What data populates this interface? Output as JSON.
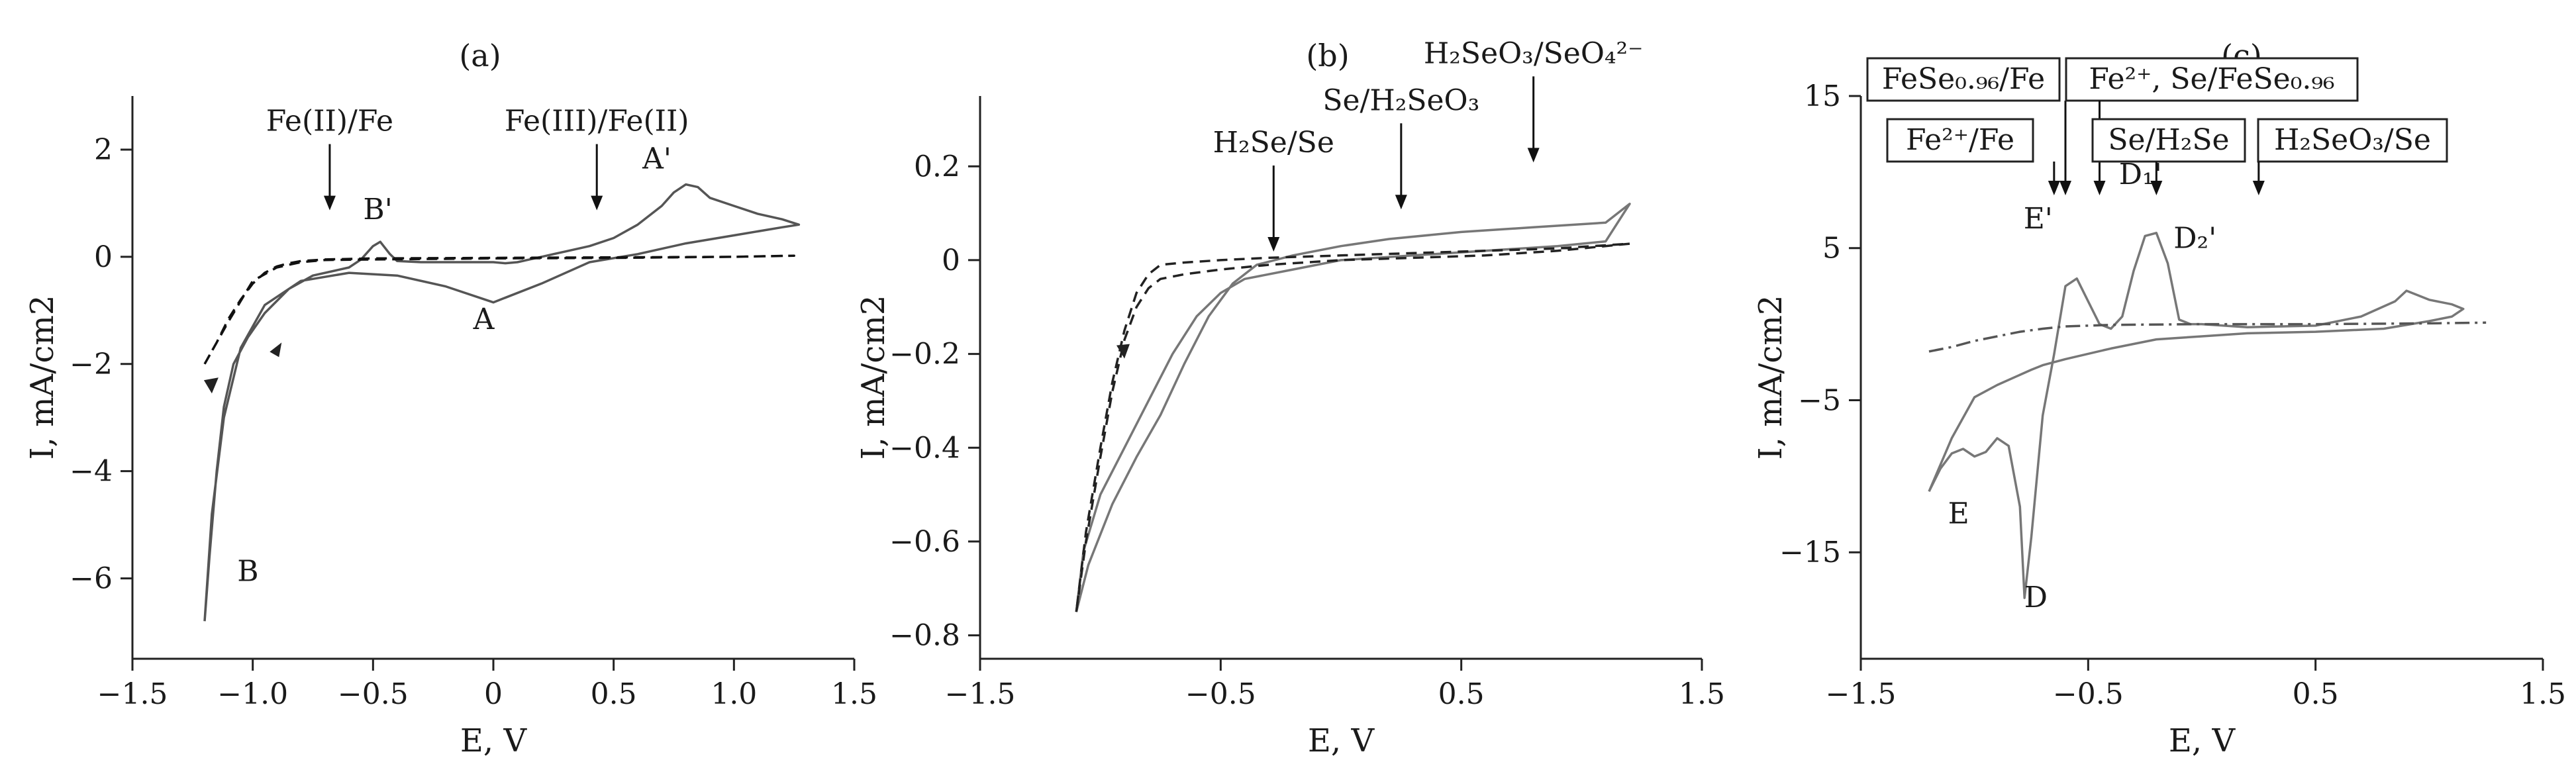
{
  "chart_data": [
    {
      "type": "line",
      "panel_label": "(a)",
      "xlabel": "E, V",
      "ylabel": "I, mA/cm2",
      "xlim": [
        -1.5,
        1.5
      ],
      "ylim": [
        -7.5,
        3
      ],
      "xticks": [
        -1.5,
        -1.0,
        -0.5,
        0,
        0.5,
        1.0,
        1.5
      ],
      "xtick_labels": [
        "−1.5",
        "−1.0",
        "−0.5",
        "0",
        "0.5",
        "1.0",
        "1.5"
      ],
      "yticks": [
        -6,
        -4,
        -2,
        0,
        2
      ],
      "ytick_labels": [
        "−6",
        "−4",
        "−2",
        "0",
        "2"
      ],
      "series": [
        {
          "style": "solid",
          "color": "#555555",
          "x": [
            -1.2,
            -1.18,
            -1.15,
            -1.12,
            -1.08,
            -1.02,
            -0.95,
            -0.85,
            -0.75,
            -0.6,
            -0.55,
            -0.5,
            -0.47,
            -0.43,
            -0.4,
            -0.3,
            -0.1,
            0.0,
            0.05,
            0.1,
            0.15,
            0.2,
            0.25,
            0.3,
            0.4,
            0.5,
            0.6,
            0.7,
            0.75,
            0.8,
            0.85,
            0.9,
            1.0,
            1.1,
            1.2,
            1.27,
            1.2,
            1.0,
            0.8,
            0.6,
            0.4,
            0.2,
            0.0,
            -0.2,
            -0.4,
            -0.6,
            -0.8,
            -0.95,
            -1.05,
            -1.12,
            -1.17,
            -1.2
          ],
          "y": [
            -6.8,
            -5.6,
            -4.0,
            -2.8,
            -2.0,
            -1.5,
            -1.05,
            -0.6,
            -0.35,
            -0.2,
            -0.05,
            0.2,
            0.28,
            0.05,
            -0.08,
            -0.1,
            -0.1,
            -0.1,
            -0.12,
            -0.1,
            -0.05,
            0.0,
            0.05,
            0.1,
            0.2,
            0.35,
            0.6,
            0.95,
            1.2,
            1.35,
            1.3,
            1.1,
            0.95,
            0.8,
            0.7,
            0.6,
            0.55,
            0.4,
            0.25,
            0.05,
            -0.1,
            -0.5,
            -0.85,
            -0.55,
            -0.35,
            -0.3,
            -0.45,
            -0.9,
            -1.7,
            -3.0,
            -4.8,
            -6.8
          ]
        },
        {
          "style": "dashed",
          "color": "#111111",
          "x": [
            -1.2,
            -1.15,
            -1.1,
            -1.05,
            -1.0,
            -0.95,
            -0.9,
            -0.85,
            -0.8,
            -0.7,
            -0.5,
            0.0,
            0.5,
            1.0,
            1.25,
            1.0,
            0.5,
            0.0,
            -0.5,
            -0.7,
            -0.8,
            -0.9,
            -1.0,
            -1.1,
            -1.2
          ],
          "y": [
            -2.0,
            -1.6,
            -1.15,
            -0.8,
            -0.5,
            -0.3,
            -0.18,
            -0.12,
            -0.08,
            -0.05,
            -0.03,
            -0.02,
            -0.01,
            0.0,
            0.02,
            0.0,
            -0.02,
            -0.03,
            -0.05,
            -0.06,
            -0.1,
            -0.2,
            -0.45,
            -1.2,
            -2.0
          ]
        }
      ],
      "annotations": [
        {
          "text": "Fe(II)/Fe",
          "x": -0.68,
          "y": 2.35
        },
        {
          "text": "Fe(III)/Fe(II)",
          "x": 0.43,
          "y": 2.35
        },
        {
          "text": "A'",
          "x": 0.68,
          "y": 1.65
        },
        {
          "text": "B'",
          "x": -0.48,
          "y": 0.7
        },
        {
          "text": "A",
          "x": -0.04,
          "y": -1.35
        },
        {
          "text": "B",
          "x": -1.02,
          "y": -6.05
        }
      ]
    },
    {
      "type": "line",
      "panel_label": "(b)",
      "xlabel": "E, V",
      "ylabel": "I, mA/cm2",
      "xlim": [
        -1.5,
        1.5
      ],
      "ylim": [
        -0.85,
        0.35
      ],
      "xticks": [
        -1.5,
        -0.5,
        0.5,
        1.5
      ],
      "xtick_labels": [
        "−1.5",
        "−0.5",
        "0.5",
        "1.5"
      ],
      "yticks": [
        -0.8,
        -0.6,
        -0.4,
        -0.2,
        0,
        0.2
      ],
      "ytick_labels": [
        "−0.8",
        "−0.6",
        "−0.4",
        "−0.2",
        "0",
        "0.2"
      ],
      "series": [
        {
          "style": "solid",
          "color": "#777777",
          "x": [
            -1.1,
            -1.07,
            -1.0,
            -0.9,
            -0.8,
            -0.7,
            -0.6,
            -0.5,
            -0.4,
            -0.2,
            0.0,
            0.3,
            0.6,
            0.9,
            1.1,
            1.2,
            1.1,
            0.8,
            0.5,
            0.2,
            0.0,
            -0.2,
            -0.35,
            -0.45,
            -0.55,
            -0.65,
            -0.75,
            -0.85,
            -0.95,
            -1.05,
            -1.1
          ],
          "y": [
            -0.75,
            -0.62,
            -0.5,
            -0.4,
            -0.3,
            -0.2,
            -0.12,
            -0.07,
            -0.04,
            -0.02,
            0.0,
            0.01,
            0.02,
            0.03,
            0.04,
            0.12,
            0.08,
            0.07,
            0.06,
            0.045,
            0.03,
            0.01,
            -0.01,
            -0.05,
            -0.12,
            -0.22,
            -0.33,
            -0.42,
            -0.52,
            -0.65,
            -0.75
          ]
        },
        {
          "style": "dashed",
          "color": "#222222",
          "x": [
            -1.1,
            -1.06,
            -1.0,
            -0.95,
            -0.9,
            -0.85,
            -0.8,
            -0.75,
            -0.65,
            -0.5,
            -0.3,
            0.0,
            0.3,
            0.6,
            0.9,
            1.2,
            0.9,
            0.6,
            0.3,
            0.0,
            -0.3,
            -0.5,
            -0.65,
            -0.75,
            -0.8,
            -0.85,
            -0.9,
            -0.95,
            -1.0,
            -1.06,
            -1.1
          ],
          "y": [
            -0.75,
            -0.6,
            -0.42,
            -0.28,
            -0.17,
            -0.1,
            -0.06,
            -0.04,
            -0.03,
            -0.02,
            -0.01,
            0.0,
            0.005,
            0.01,
            0.02,
            0.035,
            0.025,
            0.02,
            0.015,
            0.01,
            0.005,
            0.0,
            -0.005,
            -0.01,
            -0.03,
            -0.07,
            -0.15,
            -0.26,
            -0.4,
            -0.58,
            -0.75
          ]
        }
      ],
      "annotations": [
        {
          "text": "H₂Se/Se",
          "x": -0.28,
          "y": 0.23
        },
        {
          "text": "Se/H₂SeO₃",
          "x": 0.25,
          "y": 0.32
        },
        {
          "text": "H₂SeO₃/SeO₄²⁻",
          "x": 0.8,
          "y": 0.42
        }
      ]
    },
    {
      "type": "line",
      "panel_label": "(c)",
      "xlabel": "E, V",
      "ylabel": "I, mA/cm2",
      "xlim": [
        -1.5,
        1.5
      ],
      "ylim": [
        -22,
        15
      ],
      "xticks": [
        -1.5,
        -0.5,
        0.5,
        1.5
      ],
      "xtick_labels": [
        "−1.5",
        "−0.5",
        "0.5",
        "1.5"
      ],
      "yticks": [
        -15,
        -5,
        5,
        15
      ],
      "ytick_labels": [
        "−15",
        "−5",
        "5",
        "15"
      ],
      "series": [
        {
          "style": "solid",
          "color": "#777777",
          "x": [
            -1.2,
            -1.15,
            -1.1,
            -1.05,
            -1.0,
            -0.95,
            -0.9,
            -0.85,
            -0.8,
            -0.78,
            -0.75,
            -0.7,
            -0.65,
            -0.6,
            -0.55,
            -0.5,
            -0.45,
            -0.4,
            -0.35,
            -0.3,
            -0.25,
            -0.2,
            -0.15,
            -0.1,
            -0.05,
            0.0,
            0.2,
            0.5,
            0.7,
            0.85,
            0.9,
            1.0,
            1.1,
            1.15,
            1.1,
            1.0,
            0.8,
            0.5,
            0.2,
            0.0,
            -0.2,
            -0.4,
            -0.6,
            -0.7,
            -0.75,
            -0.9,
            -1.0,
            -1.1,
            -1.2
          ],
          "y": [
            -11,
            -9.5,
            -8.5,
            -8.2,
            -8.7,
            -8.4,
            -7.5,
            -8.0,
            -12,
            -18,
            -14,
            -6,
            -2,
            2.5,
            3.0,
            1.5,
            0.0,
            -0.3,
            0.5,
            3.5,
            5.8,
            6.0,
            4.0,
            0.3,
            0.0,
            0.0,
            -0.2,
            -0.1,
            0.5,
            1.5,
            2.2,
            1.6,
            1.3,
            1.0,
            0.5,
            0.2,
            -0.3,
            -0.5,
            -0.6,
            -0.8,
            -1.0,
            -1.6,
            -2.3,
            -2.7,
            -3.0,
            -4.0,
            -4.8,
            -7.5,
            -11
          ]
        },
        {
          "style": "dashdot",
          "color": "#555555",
          "x": [
            -1.2,
            -1.1,
            -1.0,
            -0.9,
            -0.8,
            -0.7,
            -0.6,
            -0.4,
            0.0,
            0.5,
            1.0,
            1.25
          ],
          "y": [
            -1.8,
            -1.5,
            -1.1,
            -0.8,
            -0.5,
            -0.3,
            -0.15,
            -0.05,
            0.0,
            0.0,
            0.05,
            0.1
          ]
        }
      ],
      "annotations": [
        {
          "text": "E'",
          "x": -0.72,
          "y": 6.3
        },
        {
          "text": "D₁'",
          "x": -0.27,
          "y": 9.2
        },
        {
          "text": "D₂'",
          "x": -0.03,
          "y": 5.0
        },
        {
          "text": "E",
          "x": -1.07,
          "y": -13.1
        },
        {
          "text": "D",
          "x": -0.73,
          "y": -18.6
        }
      ],
      "boxed_labels": [
        {
          "text": "FeSe₀.₉₆/Fe",
          "arrow_x": -0.6
        },
        {
          "text": "Fe²⁺/Fe",
          "arrow_x": -0.65
        },
        {
          "text": "Fe²⁺, Se/FeSe₀.₉₆",
          "arrow_x": -0.45
        },
        {
          "text": "Se/H₂Se",
          "arrow_x": -0.2
        },
        {
          "text": "H₂SeO₃/Se",
          "arrow_x": 0.25
        }
      ]
    }
  ]
}
